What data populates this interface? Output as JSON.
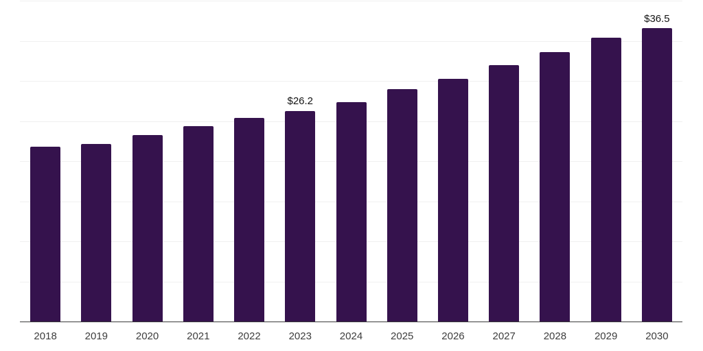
{
  "chart_style": {
    "background": "#ffffff",
    "bar_color": "#35124d",
    "grid_color": "#f0f0f0",
    "axis_color": "#3a3a3a",
    "tick_label_color": "#3d3d3d",
    "value_label_color": "#141414"
  },
  "chart_data": {
    "type": "bar",
    "categories": [
      "2018",
      "2019",
      "2020",
      "2021",
      "2022",
      "2023",
      "2024",
      "2025",
      "2026",
      "2027",
      "2028",
      "2029",
      "2030"
    ],
    "values": [
      21.7,
      22.1,
      23.2,
      24.3,
      25.3,
      26.2,
      27.3,
      28.9,
      30.2,
      31.9,
      33.5,
      35.3,
      36.5
    ],
    "data_labels": [
      {
        "category": "2023",
        "text": "$26.2"
      },
      {
        "category": "2030",
        "text": "$36.5"
      }
    ],
    "ylim": [
      0,
      40
    ],
    "grid_step": 5,
    "grid": "horizontal-only",
    "legend": "none",
    "xlabel": "",
    "ylabel": "",
    "y_tick_labels_visible": false
  }
}
